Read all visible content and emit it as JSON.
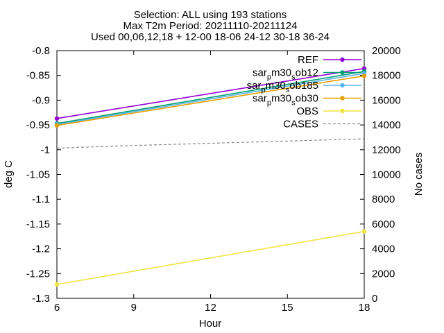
{
  "chart_data": {
    "type": "line",
    "title_lines": [
      "Selection: ALL using    193 stations",
      "Max T2m    Period: 20211110-20211124",
      "Used 00,06,12,18 + 12-00 18-06 24-12 30-18 36-24"
    ],
    "xlabel": "Hour",
    "ylabel": "deg C",
    "y2label": "No cases",
    "xlim": [
      6,
      18
    ],
    "ylim": [
      -1.3,
      -0.8
    ],
    "y2lim": [
      0,
      20000
    ],
    "xticks": [
      "6",
      "9",
      "12",
      "15",
      "18"
    ],
    "yticks": [
      "-0.8",
      "-0.85",
      "-0.9",
      "-0.95",
      "-1",
      "-1.05",
      "-1.1",
      "-1.15",
      "-1.2",
      "-1.25",
      "-1.3"
    ],
    "y2ticks": [
      "20000",
      "18000",
      "16000",
      "14000",
      "12000",
      "10000",
      "8000",
      "6000",
      "4000",
      "2000",
      "0"
    ],
    "x": [
      6,
      18
    ],
    "legend_position": "top-right",
    "series": [
      {
        "name": "REF",
        "label_main": "REF",
        "label_sub": "",
        "color": "#9400d3",
        "marker": "circle",
        "values": [
          -0.937,
          -0.836
        ]
      },
      {
        "name": "sar_pm30_sob12",
        "label_main": "sar",
        "label_sub": "p",
        "label_rest": "m30",
        "label_sub2": "s",
        "label_end": "ob12",
        "color": "#009e73",
        "marker": "circle",
        "values": [
          -0.947,
          -0.842
        ]
      },
      {
        "name": "sar_pm30_sob185",
        "label_main": "sar",
        "label_sub": "p",
        "label_rest": "m30",
        "label_sub2": "s",
        "label_end": "ob185",
        "color": "#56b4e9",
        "marker": "circle",
        "values": [
          -0.949,
          -0.846
        ]
      },
      {
        "name": "sar_pm30_sob30",
        "label_main": "sar",
        "label_sub": "p",
        "label_rest": "m30",
        "label_sub2": "s",
        "label_end": "ob30",
        "color": "#e69f00",
        "marker": "circle",
        "values": [
          -0.951,
          -0.851
        ]
      },
      {
        "name": "OBS",
        "label_main": "OBS",
        "label_sub": "",
        "color": "#f0e442",
        "marker": "circle",
        "values": [
          -1.272,
          -1.165
        ]
      },
      {
        "name": "CASES",
        "label_main": "CASES",
        "label_sub": "",
        "color": "#888888",
        "marker": "none",
        "dashed": true,
        "axis": "y2",
        "x": [
          6,
          7,
          8,
          9,
          10,
          11,
          12,
          13,
          14,
          15,
          16,
          17,
          18
        ],
        "values": [
          12130,
          12200,
          12270,
          12340,
          12400,
          12460,
          12520,
          12580,
          12640,
          12700,
          12760,
          12820,
          12880
        ]
      }
    ]
  }
}
